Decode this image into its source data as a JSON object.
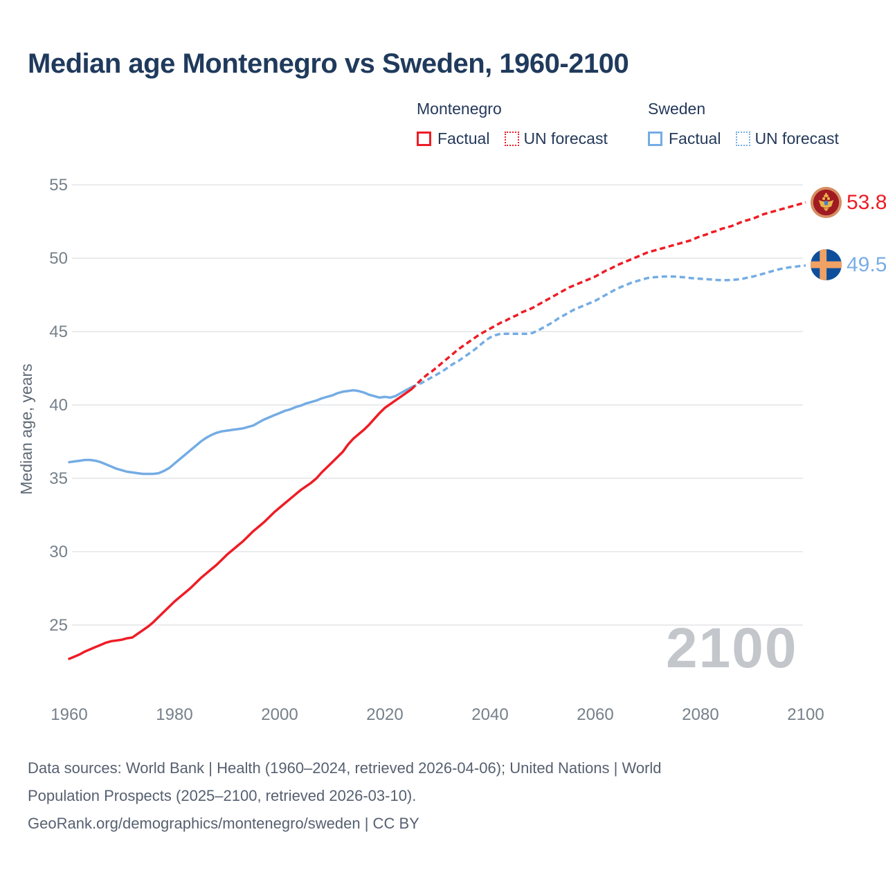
{
  "header": {
    "title": "Median age Montenegro vs Sweden, 1960-2100"
  },
  "legend": {
    "groups": [
      {
        "country": "Montenegro",
        "color": "#ee1c25",
        "items": [
          {
            "label": "Factual",
            "style": "solid"
          },
          {
            "label": "UN forecast",
            "style": "dotted"
          }
        ]
      },
      {
        "country": "Sweden",
        "color": "#74ace4",
        "items": [
          {
            "label": "Factual",
            "style": "solid"
          },
          {
            "label": "UN forecast",
            "style": "dotted"
          }
        ]
      }
    ]
  },
  "chart_data": {
    "type": "line",
    "title": "Median age Montenegro vs Sweden, 1960-2100",
    "xlabel": "",
    "ylabel": "Median age, years",
    "xlim": [
      1960,
      2100
    ],
    "ylim": [
      22,
      56
    ],
    "x_ticks": [
      1960,
      1980,
      2000,
      2020,
      2040,
      2060,
      2080,
      2100
    ],
    "y_ticks": [
      25,
      30,
      35,
      40,
      45,
      50,
      55
    ],
    "grid": "horizontal",
    "legend_position": "top-right",
    "watermark": "2100",
    "colors": {
      "montenegro": "#ee1c25",
      "sweden": "#74ace4",
      "gridline": "#eaebed",
      "tick_text": "#75808a"
    },
    "series": [
      {
        "name": "Sweden Factual",
        "color": "#74ace4",
        "dash": "solid",
        "points": [
          [
            1960,
            36.1
          ],
          [
            1961,
            36.15
          ],
          [
            1962,
            36.2
          ],
          [
            1963,
            36.25
          ],
          [
            1964,
            36.25
          ],
          [
            1965,
            36.2
          ],
          [
            1966,
            36.1
          ],
          [
            1967,
            35.95
          ],
          [
            1968,
            35.8
          ],
          [
            1969,
            35.65
          ],
          [
            1970,
            35.55
          ],
          [
            1971,
            35.45
          ],
          [
            1972,
            35.4
          ],
          [
            1973,
            35.35
          ],
          [
            1974,
            35.3
          ],
          [
            1975,
            35.3
          ],
          [
            1976,
            35.3
          ],
          [
            1977,
            35.35
          ],
          [
            1978,
            35.5
          ],
          [
            1979,
            35.7
          ],
          [
            1980,
            36.0
          ],
          [
            1981,
            36.3
          ],
          [
            1982,
            36.6
          ],
          [
            1983,
            36.9
          ],
          [
            1984,
            37.2
          ],
          [
            1985,
            37.5
          ],
          [
            1986,
            37.75
          ],
          [
            1987,
            37.95
          ],
          [
            1988,
            38.1
          ],
          [
            1989,
            38.2
          ],
          [
            1990,
            38.25
          ],
          [
            1991,
            38.3
          ],
          [
            1992,
            38.35
          ],
          [
            1993,
            38.4
          ],
          [
            1994,
            38.5
          ],
          [
            1995,
            38.6
          ],
          [
            1996,
            38.8
          ],
          [
            1997,
            39.0
          ],
          [
            1998,
            39.15
          ],
          [
            1999,
            39.3
          ],
          [
            2000,
            39.45
          ],
          [
            2001,
            39.6
          ],
          [
            2002,
            39.7
          ],
          [
            2003,
            39.85
          ],
          [
            2004,
            39.95
          ],
          [
            2005,
            40.1
          ],
          [
            2006,
            40.2
          ],
          [
            2007,
            40.3
          ],
          [
            2008,
            40.45
          ],
          [
            2009,
            40.55
          ],
          [
            2010,
            40.65
          ],
          [
            2011,
            40.8
          ],
          [
            2012,
            40.9
          ],
          [
            2013,
            40.95
          ],
          [
            2014,
            41.0
          ],
          [
            2015,
            40.95
          ],
          [
            2016,
            40.85
          ],
          [
            2017,
            40.7
          ],
          [
            2018,
            40.6
          ],
          [
            2019,
            40.5
          ],
          [
            2020,
            40.55
          ],
          [
            2021,
            40.5
          ],
          [
            2022,
            40.6
          ],
          [
            2023,
            40.8
          ],
          [
            2024,
            41.0
          ],
          [
            2025,
            41.2
          ]
        ]
      },
      {
        "name": "Sweden UN forecast",
        "color": "#74ace4",
        "dash": "dashed",
        "points": [
          [
            2025,
            41.2
          ],
          [
            2026,
            41.35
          ],
          [
            2027,
            41.5
          ],
          [
            2028,
            41.7
          ],
          [
            2029,
            41.9
          ],
          [
            2030,
            42.1
          ],
          [
            2031,
            42.3
          ],
          [
            2032,
            42.55
          ],
          [
            2033,
            42.8
          ],
          [
            2034,
            43.0
          ],
          [
            2035,
            43.25
          ],
          [
            2036,
            43.5
          ],
          [
            2037,
            43.75
          ],
          [
            2038,
            44.05
          ],
          [
            2039,
            44.35
          ],
          [
            2040,
            44.6
          ],
          [
            2041,
            44.75
          ],
          [
            2042,
            44.85
          ],
          [
            2043,
            44.85
          ],
          [
            2044,
            44.85
          ],
          [
            2045,
            44.85
          ],
          [
            2046,
            44.85
          ],
          [
            2047,
            44.85
          ],
          [
            2048,
            44.9
          ],
          [
            2049,
            45.05
          ],
          [
            2050,
            45.25
          ],
          [
            2051,
            45.45
          ],
          [
            2052,
            45.65
          ],
          [
            2053,
            45.9
          ],
          [
            2054,
            46.1
          ],
          [
            2055,
            46.3
          ],
          [
            2056,
            46.5
          ],
          [
            2057,
            46.65
          ],
          [
            2058,
            46.8
          ],
          [
            2059,
            46.95
          ],
          [
            2060,
            47.1
          ],
          [
            2061,
            47.3
          ],
          [
            2062,
            47.5
          ],
          [
            2063,
            47.7
          ],
          [
            2064,
            47.9
          ],
          [
            2065,
            48.05
          ],
          [
            2066,
            48.2
          ],
          [
            2067,
            48.35
          ],
          [
            2068,
            48.45
          ],
          [
            2069,
            48.55
          ],
          [
            2070,
            48.65
          ],
          [
            2071,
            48.7
          ],
          [
            2072,
            48.72
          ],
          [
            2073,
            48.75
          ],
          [
            2074,
            48.75
          ],
          [
            2075,
            48.75
          ],
          [
            2076,
            48.72
          ],
          [
            2077,
            48.7
          ],
          [
            2078,
            48.65
          ],
          [
            2079,
            48.62
          ],
          [
            2080,
            48.6
          ],
          [
            2081,
            48.57
          ],
          [
            2082,
            48.55
          ],
          [
            2083,
            48.52
          ],
          [
            2084,
            48.5
          ],
          [
            2085,
            48.5
          ],
          [
            2086,
            48.52
          ],
          [
            2087,
            48.55
          ],
          [
            2088,
            48.6
          ],
          [
            2089,
            48.68
          ],
          [
            2090,
            48.75
          ],
          [
            2091,
            48.85
          ],
          [
            2092,
            48.95
          ],
          [
            2093,
            49.05
          ],
          [
            2094,
            49.15
          ],
          [
            2095,
            49.25
          ],
          [
            2096,
            49.32
          ],
          [
            2097,
            49.38
          ],
          [
            2098,
            49.42
          ],
          [
            2099,
            49.47
          ],
          [
            2100,
            49.5
          ]
        ]
      },
      {
        "name": "Montenegro Factual",
        "color": "#ee1c25",
        "dash": "solid",
        "points": [
          [
            1960,
            22.7
          ],
          [
            1961,
            22.85
          ],
          [
            1962,
            23.0
          ],
          [
            1963,
            23.2
          ],
          [
            1964,
            23.35
          ],
          [
            1965,
            23.5
          ],
          [
            1966,
            23.65
          ],
          [
            1967,
            23.8
          ],
          [
            1968,
            23.9
          ],
          [
            1969,
            23.95
          ],
          [
            1970,
            24.0
          ],
          [
            1971,
            24.1
          ],
          [
            1972,
            24.15
          ],
          [
            1973,
            24.4
          ],
          [
            1974,
            24.65
          ],
          [
            1975,
            24.9
          ],
          [
            1976,
            25.2
          ],
          [
            1977,
            25.55
          ],
          [
            1978,
            25.9
          ],
          [
            1979,
            26.25
          ],
          [
            1980,
            26.6
          ],
          [
            1981,
            26.9
          ],
          [
            1982,
            27.2
          ],
          [
            1983,
            27.5
          ],
          [
            1984,
            27.85
          ],
          [
            1985,
            28.2
          ],
          [
            1986,
            28.5
          ],
          [
            1987,
            28.8
          ],
          [
            1988,
            29.1
          ],
          [
            1989,
            29.45
          ],
          [
            1990,
            29.8
          ],
          [
            1991,
            30.1
          ],
          [
            1992,
            30.4
          ],
          [
            1993,
            30.7
          ],
          [
            1994,
            31.05
          ],
          [
            1995,
            31.4
          ],
          [
            1996,
            31.7
          ],
          [
            1997,
            32.0
          ],
          [
            1998,
            32.35
          ],
          [
            1999,
            32.7
          ],
          [
            2000,
            33.0
          ],
          [
            2001,
            33.3
          ],
          [
            2002,
            33.6
          ],
          [
            2003,
            33.9
          ],
          [
            2004,
            34.2
          ],
          [
            2005,
            34.45
          ],
          [
            2006,
            34.7
          ],
          [
            2007,
            35.0
          ],
          [
            2008,
            35.4
          ],
          [
            2009,
            35.75
          ],
          [
            2010,
            36.1
          ],
          [
            2011,
            36.45
          ],
          [
            2012,
            36.8
          ],
          [
            2013,
            37.3
          ],
          [
            2014,
            37.7
          ],
          [
            2015,
            38.0
          ],
          [
            2016,
            38.3
          ],
          [
            2017,
            38.65
          ],
          [
            2018,
            39.05
          ],
          [
            2019,
            39.45
          ],
          [
            2020,
            39.8
          ],
          [
            2021,
            40.05
          ],
          [
            2022,
            40.3
          ],
          [
            2023,
            40.55
          ],
          [
            2024,
            40.8
          ],
          [
            2025,
            41.05
          ]
        ]
      },
      {
        "name": "Montenegro UN forecast",
        "color": "#ee1c25",
        "dash": "dashed",
        "points": [
          [
            2025,
            41.05
          ],
          [
            2026,
            41.4
          ],
          [
            2027,
            41.75
          ],
          [
            2028,
            42.05
          ],
          [
            2029,
            42.3
          ],
          [
            2030,
            42.6
          ],
          [
            2031,
            42.9
          ],
          [
            2032,
            43.2
          ],
          [
            2033,
            43.5
          ],
          [
            2034,
            43.8
          ],
          [
            2035,
            44.05
          ],
          [
            2036,
            44.3
          ],
          [
            2037,
            44.55
          ],
          [
            2038,
            44.8
          ],
          [
            2039,
            45.0
          ],
          [
            2040,
            45.2
          ],
          [
            2041,
            45.4
          ],
          [
            2042,
            45.6
          ],
          [
            2043,
            45.75
          ],
          [
            2044,
            45.95
          ],
          [
            2045,
            46.1
          ],
          [
            2046,
            46.3
          ],
          [
            2047,
            46.45
          ],
          [
            2048,
            46.6
          ],
          [
            2049,
            46.8
          ],
          [
            2050,
            47.0
          ],
          [
            2051,
            47.2
          ],
          [
            2052,
            47.4
          ],
          [
            2053,
            47.6
          ],
          [
            2054,
            47.8
          ],
          [
            2055,
            48.0
          ],
          [
            2056,
            48.15
          ],
          [
            2057,
            48.3
          ],
          [
            2058,
            48.45
          ],
          [
            2059,
            48.6
          ],
          [
            2060,
            48.75
          ],
          [
            2061,
            48.95
          ],
          [
            2062,
            49.15
          ],
          [
            2063,
            49.3
          ],
          [
            2064,
            49.5
          ],
          [
            2065,
            49.65
          ],
          [
            2066,
            49.8
          ],
          [
            2067,
            49.95
          ],
          [
            2068,
            50.1
          ],
          [
            2069,
            50.25
          ],
          [
            2070,
            50.4
          ],
          [
            2071,
            50.5
          ],
          [
            2072,
            50.6
          ],
          [
            2073,
            50.7
          ],
          [
            2074,
            50.8
          ],
          [
            2075,
            50.9
          ],
          [
            2076,
            51.0
          ],
          [
            2077,
            51.1
          ],
          [
            2078,
            51.2
          ],
          [
            2079,
            51.35
          ],
          [
            2080,
            51.5
          ],
          [
            2081,
            51.6
          ],
          [
            2082,
            51.75
          ],
          [
            2083,
            51.85
          ],
          [
            2084,
            52.0
          ],
          [
            2085,
            52.1
          ],
          [
            2086,
            52.2
          ],
          [
            2087,
            52.35
          ],
          [
            2088,
            52.5
          ],
          [
            2089,
            52.6
          ],
          [
            2090,
            52.7
          ],
          [
            2091,
            52.85
          ],
          [
            2092,
            53.0
          ],
          [
            2093,
            53.1
          ],
          [
            2094,
            53.2
          ],
          [
            2095,
            53.3
          ],
          [
            2096,
            53.4
          ],
          [
            2097,
            53.5
          ],
          [
            2098,
            53.6
          ],
          [
            2099,
            53.7
          ],
          [
            2100,
            53.8
          ]
        ]
      }
    ],
    "end_labels": [
      {
        "country": "Montenegro",
        "value": "53.8",
        "color": "#ee1c25",
        "flag": "montenegro-flag-icon"
      },
      {
        "country": "Sweden",
        "value": "49.5",
        "color": "#79aee6",
        "flag": "sweden-flag-icon"
      }
    ]
  },
  "footer": {
    "lines": [
      "Data sources: World Bank | Health (1960–2024, retrieved 2026-04-06); United Nations | World",
      "Population Prospects (2025–2100, retrieved 2026-03-10).",
      "GeoRank.org/demographics/montenegro/sweden | CC BY"
    ]
  }
}
